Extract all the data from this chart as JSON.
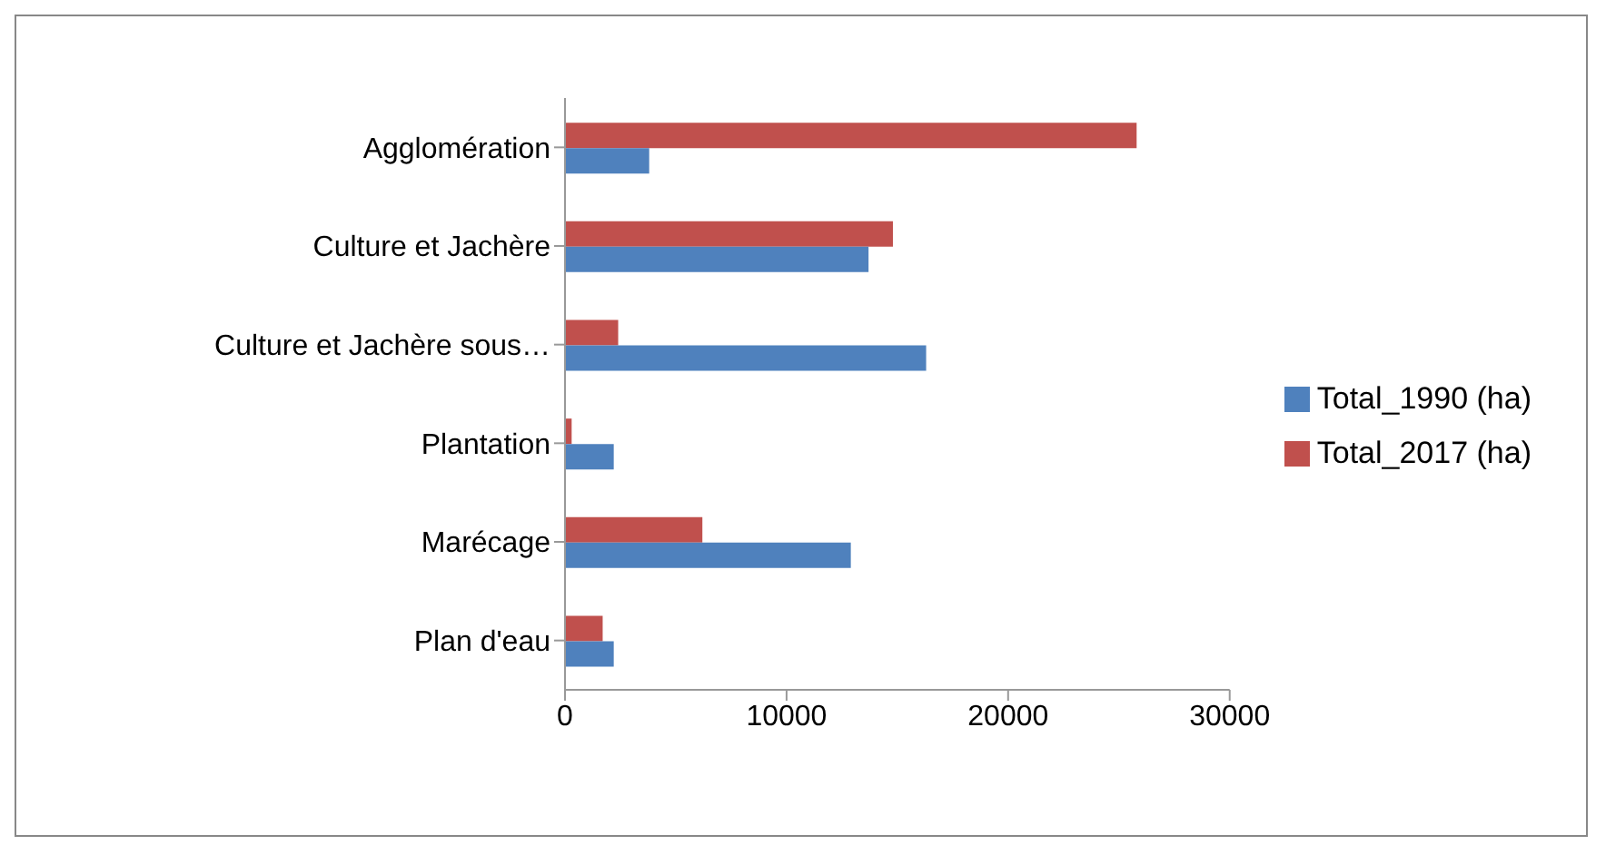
{
  "chart_data": {
    "type": "bar",
    "orientation": "horizontal",
    "categories": [
      "Agglomération",
      "Culture et Jachère ",
      "Culture et Jachère sous…",
      "Plantation",
      "Marécage",
      "Plan d'eau"
    ],
    "series": [
      {
        "name": "Total_2017 (ha)",
        "color": "#c0504d",
        "values": [
          25800,
          14800,
          2400,
          300,
          6200,
          1700
        ]
      },
      {
        "name": "Total_1990 (ha)",
        "color": "#4f81bd",
        "values": [
          3800,
          13700,
          16300,
          2200,
          12900,
          2200
        ]
      }
    ],
    "xlim": [
      0,
      30000
    ],
    "xticks": [
      0,
      10000,
      20000,
      30000
    ],
    "grid": false,
    "legend": "right"
  }
}
